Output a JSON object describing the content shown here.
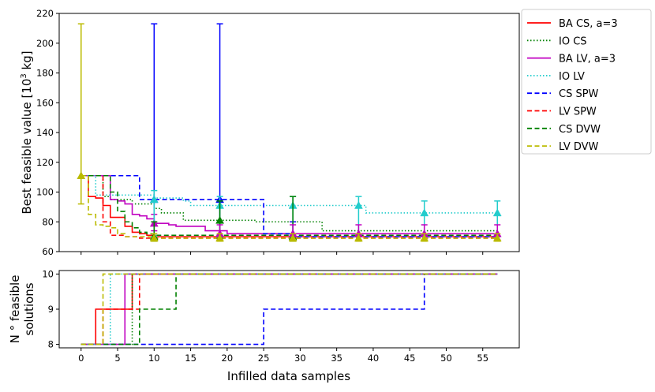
{
  "chart_data": [
    {
      "type": "line",
      "xlabel": "",
      "ylabel": "Best feasible value [10³ kg]",
      "ylabel_parts": [
        "Best feasible value [10",
        "3",
        " kg]"
      ],
      "xlim": [
        -3,
        60
      ],
      "ylim": [
        60,
        220
      ],
      "xticks": [
        0,
        5,
        10,
        15,
        20,
        25,
        30,
        35,
        40,
        45,
        50,
        55
      ],
      "yticks": [
        60,
        80,
        100,
        120,
        140,
        160,
        180,
        200,
        220
      ],
      "grid": false,
      "legend_position": "outside-right",
      "series": [
        {
          "name": "BA CS, a=3",
          "color": "#ff0000",
          "style": "solid",
          "x": [
            0,
            1,
            2,
            3,
            4,
            5,
            6,
            7,
            8,
            9,
            10,
            57
          ],
          "y": [
            111,
            97,
            96,
            91,
            83,
            83,
            77,
            73,
            72,
            71,
            70,
            69
          ]
        },
        {
          "name": "IO CS",
          "color": "#008000",
          "style": "dotted",
          "x": [
            0,
            3,
            4,
            7,
            10,
            11,
            14,
            24,
            29,
            33,
            57
          ],
          "y": [
            111,
            97,
            95,
            92,
            89,
            86,
            81,
            80,
            80,
            74,
            70
          ]
        },
        {
          "name": "BA LV, a=3",
          "color": "#c000c0",
          "style": "solid",
          "x": [
            0,
            4,
            5,
            6,
            7,
            8,
            9,
            10,
            12,
            13,
            14,
            17,
            20,
            57
          ],
          "y": [
            111,
            95,
            94,
            92,
            85,
            84,
            82,
            79,
            78,
            77,
            77,
            74,
            72,
            72
          ]
        },
        {
          "name": "IO LV",
          "color": "#22cccc",
          "style": "dotted",
          "x": [
            0,
            1,
            2,
            10,
            14,
            15,
            38,
            39,
            57
          ],
          "y": [
            111,
            111,
            98,
            96,
            94,
            91,
            91,
            86,
            86
          ]
        },
        {
          "name": "CS SPW",
          "color": "#0000ff",
          "style": "dashed",
          "x": [
            0,
            7,
            8,
            10,
            19,
            25,
            29,
            57
          ],
          "y": [
            111,
            111,
            95,
            95,
            95,
            72,
            70,
            69
          ]
        },
        {
          "name": "LV SPW",
          "color": "#ff0000",
          "style": "dashed",
          "x": [
            0,
            2,
            3,
            4,
            6,
            8,
            57
          ],
          "y": [
            111,
            111,
            80,
            71,
            70,
            69,
            69
          ]
        },
        {
          "name": "CS DVW",
          "color": "#008000",
          "style": "dashed",
          "x": [
            0,
            3,
            4,
            5,
            6,
            7,
            8,
            9,
            10,
            57
          ],
          "y": [
            111,
            111,
            100,
            87,
            80,
            76,
            73,
            72,
            71,
            69
          ]
        },
        {
          "name": "LV DVW",
          "color": "#bbbb00",
          "style": "dashed",
          "x": [
            0,
            1,
            2,
            3,
            4,
            5,
            6,
            10,
            57
          ],
          "y": [
            111,
            85,
            78,
            77,
            76,
            72,
            70,
            69,
            68
          ]
        }
      ],
      "error_bars": [
        {
          "color": "#bbbb00",
          "x": 0,
          "mean": 111,
          "low": 92,
          "high": 213
        },
        {
          "color": "#0000ff",
          "x": 10,
          "mean": 95,
          "low": 68,
          "high": 213
        },
        {
          "color": "#0000ff",
          "x": 19,
          "mean": 95,
          "low": 68,
          "high": 213
        },
        {
          "color": "#0000ff",
          "x": 29,
          "mean": 72,
          "low": 68,
          "high": 80
        },
        {
          "color": "#c000c0",
          "x": 10,
          "mean": 79,
          "low": 74,
          "high": 85
        },
        {
          "color": "#22cccc",
          "x": 10,
          "mean": 95,
          "low": 70,
          "high": 101
        },
        {
          "color": "#22cccc",
          "x": 19,
          "mean": 91,
          "low": 70,
          "high": 97
        },
        {
          "color": "#22cccc",
          "x": 29,
          "mean": 91,
          "low": 70,
          "high": 97
        },
        {
          "color": "#22cccc",
          "x": 38,
          "mean": 91,
          "low": 70,
          "high": 97
        },
        {
          "color": "#22cccc",
          "x": 47,
          "mean": 86,
          "low": 70,
          "high": 94
        },
        {
          "color": "#22cccc",
          "x": 57,
          "mean": 86,
          "low": 70,
          "high": 94
        },
        {
          "color": "#008000",
          "x": 10,
          "mean": 70,
          "low": 67,
          "high": 80
        },
        {
          "color": "#008000",
          "x": 19,
          "mean": 81,
          "low": 69,
          "high": 94
        },
        {
          "color": "#008000",
          "x": 29,
          "mean": 70,
          "low": 67,
          "high": 97
        },
        {
          "color": "#c000c0",
          "x": 19,
          "mean": 72,
          "low": 68,
          "high": 78
        },
        {
          "color": "#c000c0",
          "x": 29,
          "mean": 72,
          "low": 68,
          "high": 78
        },
        {
          "color": "#c000c0",
          "x": 38,
          "mean": 72,
          "low": 68,
          "high": 78
        },
        {
          "color": "#c000c0",
          "x": 47,
          "mean": 72,
          "low": 68,
          "high": 78
        },
        {
          "color": "#c000c0",
          "x": 57,
          "mean": 72,
          "low": 68,
          "high": 78
        },
        {
          "color": "#bbbb00",
          "x": 10,
          "mean": 69,
          "low": 67,
          "high": 72
        },
        {
          "color": "#bbbb00",
          "x": 19,
          "mean": 69,
          "low": 67,
          "high": 72
        },
        {
          "color": "#bbbb00",
          "x": 29,
          "mean": 69,
          "low": 67,
          "high": 72
        },
        {
          "color": "#bbbb00",
          "x": 38,
          "mean": 69,
          "low": 67,
          "high": 72
        },
        {
          "color": "#bbbb00",
          "x": 47,
          "mean": 69,
          "low": 67,
          "high": 72
        },
        {
          "color": "#bbbb00",
          "x": 57,
          "mean": 69,
          "low": 67,
          "high": 72
        }
      ]
    },
    {
      "type": "line",
      "xlabel": "Infilled data samples",
      "ylabel": "N ° feasible solutions",
      "ylabel_lines": [
        "N ° feasible",
        "solutions"
      ],
      "xlim": [
        -3,
        60
      ],
      "ylim": [
        7.9,
        10.1
      ],
      "xticks": [
        0,
        5,
        10,
        15,
        20,
        25,
        30,
        35,
        40,
        45,
        50,
        55
      ],
      "xtick_labels": [
        "0",
        "5",
        "10",
        "15",
        "20",
        "25",
        "30",
        "35",
        "40",
        "45",
        "50",
        "55"
      ],
      "yticks": [
        8,
        9,
        10
      ],
      "grid": false,
      "series": [
        {
          "name": "BA CS, a=3",
          "color": "#ff0000",
          "style": "solid",
          "x": [
            0,
            1,
            2,
            6,
            7,
            57
          ],
          "y": [
            8,
            8,
            9,
            9,
            10,
            10
          ]
        },
        {
          "name": "IO CS",
          "color": "#008000",
          "style": "dotted",
          "x": [
            0,
            6,
            7,
            57
          ],
          "y": [
            8,
            8,
            10,
            10
          ]
        },
        {
          "name": "BA LV, a=3",
          "color": "#c000c0",
          "style": "solid",
          "x": [
            0,
            5,
            6,
            57
          ],
          "y": [
            8,
            8,
            10,
            10
          ]
        },
        {
          "name": "IO LV",
          "color": "#22cccc",
          "style": "dotted",
          "x": [
            0,
            2,
            4,
            57
          ],
          "y": [
            8,
            8,
            10,
            10
          ]
        },
        {
          "name": "CS SPW",
          "color": "#0000ff",
          "style": "dashed",
          "x": [
            0,
            24,
            25,
            46,
            47,
            57
          ],
          "y": [
            8,
            8,
            9,
            9,
            10,
            10
          ]
        },
        {
          "name": "LV SPW",
          "color": "#ff0000",
          "style": "dashed",
          "x": [
            0,
            2,
            3,
            7,
            8,
            57
          ],
          "y": [
            8,
            8,
            9,
            9,
            10,
            10
          ]
        },
        {
          "name": "CS DVW",
          "color": "#008000",
          "style": "dashed",
          "x": [
            0,
            7,
            8,
            12,
            13,
            57
          ],
          "y": [
            8,
            8,
            9,
            9,
            10,
            10
          ]
        },
        {
          "name": "LV DVW",
          "color": "#bbbb00",
          "style": "dashed",
          "x": [
            0,
            1,
            3,
            57
          ],
          "y": [
            8,
            8,
            10,
            10
          ]
        }
      ]
    }
  ]
}
